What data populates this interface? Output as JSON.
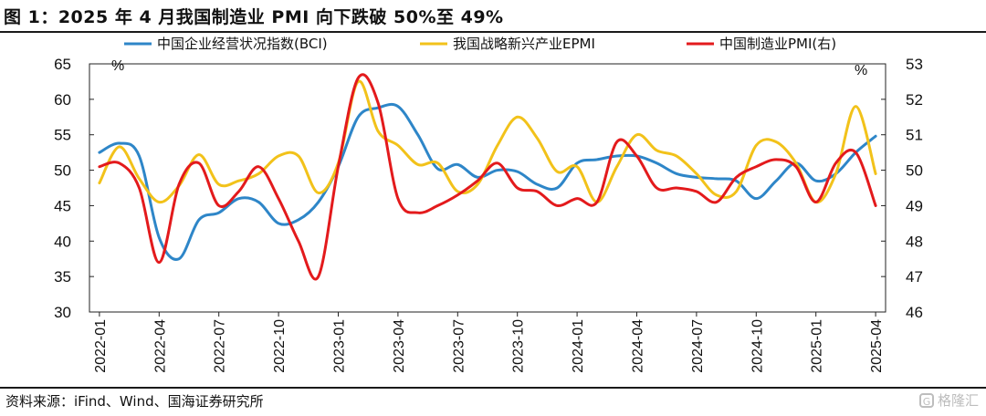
{
  "title": "图 1：2025 年 4 月我国制造业 PMI 向下跌破 50%至 49%",
  "source": "资料来源：iFind、Wind、国海证券研究所",
  "watermark": "格隆汇",
  "chart_data": {
    "type": "line",
    "left_unit": "%",
    "right_unit": "%",
    "y_left": {
      "min": 30,
      "max": 65,
      "ticks": [
        30,
        35,
        40,
        45,
        50,
        55,
        60,
        65
      ]
    },
    "y_right": {
      "min": 46,
      "max": 53,
      "ticks": [
        46,
        47,
        48,
        49,
        50,
        51,
        52,
        53
      ]
    },
    "x_labels": [
      "2022-01",
      "2022-04",
      "2022-07",
      "2022-10",
      "2023-01",
      "2023-04",
      "2023-07",
      "2023-10",
      "2024-01",
      "2024-04",
      "2024-07",
      "2024-10",
      "2025-01",
      "2025-04"
    ],
    "legend_position": "top",
    "x": [
      "2022-01",
      "2022-02",
      "2022-03",
      "2022-04",
      "2022-05",
      "2022-06",
      "2022-07",
      "2022-08",
      "2022-09",
      "2022-10",
      "2022-11",
      "2022-12",
      "2023-01",
      "2023-02",
      "2023-03",
      "2023-04",
      "2023-05",
      "2023-06",
      "2023-07",
      "2023-08",
      "2023-09",
      "2023-10",
      "2023-11",
      "2023-12",
      "2024-01",
      "2024-02",
      "2024-03",
      "2024-04",
      "2024-05",
      "2024-06",
      "2024-07",
      "2024-08",
      "2024-09",
      "2024-10",
      "2024-11",
      "2024-12",
      "2025-01",
      "2025-02",
      "2025-03",
      "2025-04"
    ],
    "series": [
      {
        "name": "中国企业经营状况指数(BCI)",
        "axis": "left",
        "color": "#2e86c8",
        "values": [
          52.5,
          53.8,
          52.0,
          40.5,
          37.5,
          43.0,
          44.0,
          46.0,
          45.5,
          42.5,
          43.0,
          45.5,
          50.5,
          57.5,
          58.8,
          59.0,
          55.0,
          50.2,
          50.8,
          49.0,
          50.0,
          49.8,
          48.0,
          47.5,
          51.0,
          51.5,
          52.0,
          52.0,
          51.0,
          49.5,
          49.0,
          48.8,
          48.5,
          46.0,
          48.5,
          51.0,
          48.5,
          49.5,
          52.5,
          54.8
        ]
      },
      {
        "name": "我国战略新兴产业EPMI",
        "axis": "left",
        "color": "#f2c21a",
        "values": [
          48.2,
          53.3,
          48.8,
          45.5,
          47.8,
          52.2,
          48.0,
          48.5,
          49.5,
          52.0,
          52.0,
          46.8,
          51.0,
          62.5,
          55.5,
          53.5,
          50.8,
          51.0,
          47.0,
          48.0,
          53.5,
          57.5,
          54.5,
          49.8,
          50.5,
          45.5,
          50.5,
          55.0,
          52.8,
          52.0,
          49.5,
          46.5,
          47.0,
          53.5,
          54.0,
          51.0,
          45.5,
          49.5,
          59.0,
          49.5
        ]
      },
      {
        "name": "中国制造业PMI(右)",
        "axis": "right",
        "color": "#e31a1c",
        "values": [
          50.1,
          50.2,
          49.5,
          47.4,
          49.6,
          50.2,
          49.0,
          49.4,
          50.1,
          49.2,
          48.0,
          47.0,
          50.1,
          52.6,
          51.9,
          49.2,
          48.8,
          49.0,
          49.3,
          49.7,
          50.2,
          49.5,
          49.4,
          49.0,
          49.2,
          49.1,
          50.8,
          50.4,
          49.5,
          49.5,
          49.4,
          49.1,
          49.8,
          50.1,
          50.3,
          50.1,
          49.1,
          50.2,
          50.5,
          49.0
        ]
      }
    ]
  }
}
